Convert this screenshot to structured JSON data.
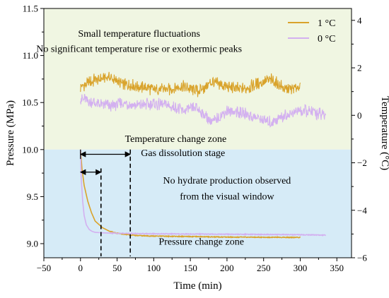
{
  "chart_data": {
    "type": "line",
    "xlabel": "Time (min)",
    "ylabel_left": "Pressure (MPa)",
    "ylabel_right": "Temperature (°C)",
    "xlim": [
      -50,
      370
    ],
    "ylim_left": [
      8.85,
      11.5
    ],
    "ylim_right": [
      -6,
      4.5
    ],
    "x_ticks": [
      -50,
      0,
      50,
      100,
      150,
      200,
      250,
      300,
      350
    ],
    "y_ticks_left": [
      9.0,
      9.5,
      10.0,
      10.5,
      11.0,
      11.5
    ],
    "y_ticks_right": [
      -6,
      -4,
      -2,
      0,
      2,
      4
    ],
    "legend_position": "top-right",
    "zones": [
      {
        "name": "temperature",
        "label": "Temperature change zone",
        "y_from": 10.0,
        "y_to": 11.5,
        "color": "#f0f6e2"
      },
      {
        "name": "pressure",
        "label": "Pressure change zone",
        "y_from": 8.85,
        "y_to": 10.0,
        "color": "#d6ebf7"
      }
    ],
    "series": [
      {
        "name": "1 °C",
        "color": "#d9a32b",
        "temperature_axis": "right",
        "temperature": {
          "x": [
            0,
            20,
            40,
            60,
            80,
            100,
            120,
            140,
            160,
            180,
            200,
            220,
            240,
            260,
            280,
            300
          ],
          "y": [
            1.2,
            1.5,
            1.6,
            1.3,
            1.2,
            1.1,
            1.1,
            1.2,
            1.0,
            1.4,
            1.2,
            1.1,
            1.3,
            1.5,
            1.1,
            1.2
          ]
        },
        "pressure_axis": "left",
        "pressure": {
          "x": [
            0,
            2,
            5,
            10,
            15,
            20,
            30,
            40,
            50,
            60,
            70,
            80,
            100,
            150,
            200,
            250,
            300
          ],
          "y": [
            10.0,
            9.8,
            9.62,
            9.45,
            9.33,
            9.24,
            9.17,
            9.13,
            9.11,
            9.1,
            9.09,
            9.085,
            9.08,
            9.075,
            9.07,
            9.068,
            9.066
          ]
        }
      },
      {
        "name": "0 °C",
        "color": "#d3b0f0",
        "temperature_axis": "right",
        "temperature": {
          "x": [
            0,
            20,
            40,
            60,
            80,
            100,
            120,
            140,
            160,
            180,
            200,
            220,
            240,
            260,
            280,
            300,
            320,
            335
          ],
          "y": [
            0.7,
            0.5,
            0.4,
            0.5,
            0.4,
            0.5,
            0.4,
            0.2,
            0.3,
            -0.3,
            0.2,
            0.1,
            -0.1,
            -0.3,
            0.0,
            0.2,
            0.1,
            0.0
          ]
        },
        "pressure_axis": "left",
        "pressure": {
          "x": [
            0,
            1,
            3,
            5,
            8,
            12,
            16,
            20,
            30,
            50,
            100,
            200,
            300,
            335
          ],
          "y": [
            10.0,
            9.7,
            9.45,
            9.3,
            9.2,
            9.15,
            9.13,
            9.12,
            9.115,
            9.11,
            9.105,
            9.1,
            9.095,
            9.09
          ]
        }
      }
    ],
    "annotations": [
      {
        "text": "Small temperature fluctuations",
        "x": 80,
        "y": 11.2
      },
      {
        "text": "No significant temperature rise or exothermic peaks",
        "x": 80,
        "y": 11.04
      },
      {
        "text": "Temperature change zone",
        "x": 130,
        "y": 10.08
      },
      {
        "text": "Gas dissolution stage",
        "x": 140,
        "y": 9.93
      },
      {
        "text": "No hydrate production observed",
        "x": 200,
        "y": 9.64
      },
      {
        "text": "from the visual window",
        "x": 200,
        "y": 9.47
      },
      {
        "text": "Pressure change zone",
        "x": 165,
        "y": 8.99
      }
    ],
    "markers": {
      "vlines_x": [
        28,
        68
      ],
      "arrows": [
        {
          "x_from": 0,
          "x_to": 68,
          "y": 9.95
        },
        {
          "x_from": 0,
          "x_to": 28,
          "y": 9.76
        }
      ]
    }
  }
}
